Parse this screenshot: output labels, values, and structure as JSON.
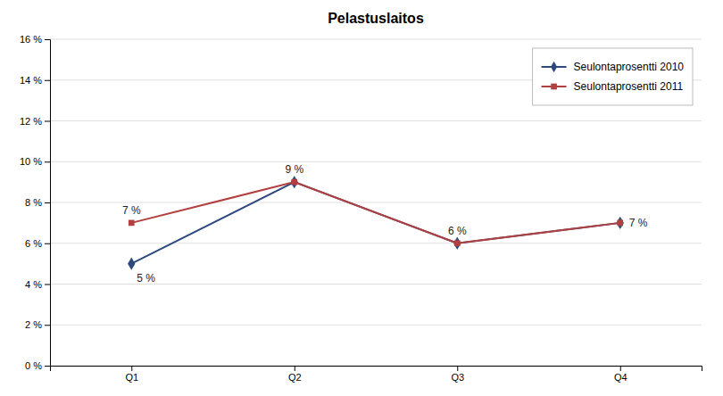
{
  "chart_data": {
    "type": "line",
    "title": "Pelastuslaitos",
    "categories": [
      "Q1",
      "Q2",
      "Q3",
      "Q4"
    ],
    "series": [
      {
        "name": "Seulontaprosentti 2010",
        "color": "#2E4A7C",
        "marker": "diamond",
        "line_style": "solid",
        "values": [
          5,
          9,
          6,
          7
        ],
        "value_labels": [
          "5 %",
          "9 %",
          "6 %",
          "7 %"
        ]
      },
      {
        "name": "Seulontaprosentti 2011",
        "color": "#B34040",
        "marker": "square",
        "line_style": "solid",
        "values": [
          7,
          9,
          6,
          7
        ],
        "value_labels": [
          "7 %",
          null,
          null,
          null
        ]
      }
    ],
    "ylim": [
      0,
      16
    ],
    "yticks": [
      {
        "value": 0,
        "label": "0 %"
      },
      {
        "value": 2,
        "label": "2 %"
      },
      {
        "value": 4,
        "label": "4 %"
      },
      {
        "value": 6,
        "label": "6 %"
      },
      {
        "value": 8,
        "label": "8 %"
      },
      {
        "value": 10,
        "label": "10 %"
      },
      {
        "value": 12,
        "label": "12 %"
      },
      {
        "value": 14,
        "label": "14 %"
      },
      {
        "value": 16,
        "label": "16 %"
      }
    ],
    "grid": true,
    "legend": "upper right",
    "data_labels": true
  }
}
